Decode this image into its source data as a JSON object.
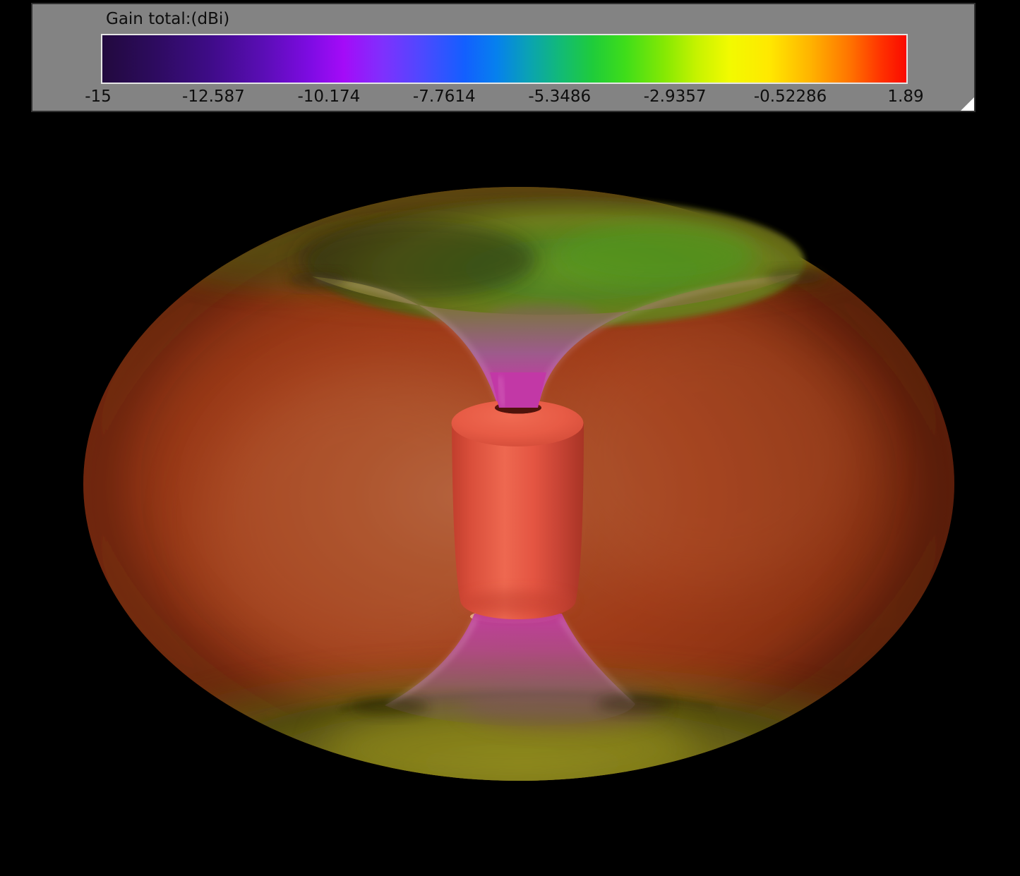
{
  "window": {
    "background_color": "#000000"
  },
  "legend": {
    "title": "Gain total:(dBi)",
    "panel_color": "#838383",
    "text_color": "#0e0e0e",
    "ticks": [
      "-15",
      "-12.587",
      "-10.174",
      "-7.7614",
      "-5.3486",
      "-2.9357",
      "-0.52286",
      "1.89"
    ],
    "gradient_stops": [
      [
        0,
        "#220a3e"
      ],
      [
        6,
        "#2c0b5c"
      ],
      [
        13,
        "#3d0c85"
      ],
      [
        20,
        "#5a0db5"
      ],
      [
        26,
        "#7f0ce4"
      ],
      [
        30,
        "#a40bf8"
      ],
      [
        35,
        "#7e31fd"
      ],
      [
        40,
        "#4b4aff"
      ],
      [
        45,
        "#135fff"
      ],
      [
        49,
        "#0680ee"
      ],
      [
        53,
        "#0aa2b4"
      ],
      [
        57,
        "#12ba76"
      ],
      [
        61,
        "#1fcc3a"
      ],
      [
        65,
        "#3edd1a"
      ],
      [
        70,
        "#86e903"
      ],
      [
        74,
        "#c7f300"
      ],
      [
        78,
        "#f2fa00"
      ],
      [
        83,
        "#ffe800"
      ],
      [
        88,
        "#ffb400"
      ],
      [
        93,
        "#ff7300"
      ],
      [
        97,
        "#ff3000"
      ],
      [
        100,
        "#fa0a00"
      ]
    ]
  },
  "chart_data": {
    "type": "heatmap",
    "title": "Gain total:(dBi)",
    "units": "dBi",
    "value_range": [
      -15,
      1.89
    ],
    "colorbar_ticks": [
      -15,
      -12.587,
      -10.174,
      -7.7614,
      -5.3486,
      -2.9357,
      -0.52286,
      1.89
    ],
    "colormap": [
      "#220a3e",
      "#3d0c85",
      "#7f0ce4",
      "#a40bf8",
      "#4b4aff",
      "#135fff",
      "#0aa2b4",
      "#1fcc3a",
      "#86e903",
      "#f2fa00",
      "#ffb400",
      "#ff7300",
      "#fa0a00"
    ],
    "annotations": [
      "3D far-field gain pattern: toroidal (donut) lobe around a vertical cylinder antenna",
      "Maximum gain 1.89 dBi (red) broadside around the equator",
      "Deep nulls toward -15 dBi (magenta/violet funnels) along the vertical axis above and below the antenna"
    ]
  },
  "scene": {
    "torus_body_color": "#a03c19",
    "rim_olive_color": "#6e6414",
    "bowl_green_color": "#568420",
    "null_magenta_color": "#c433ac",
    "antenna_color": "#ee6850",
    "max_gain_dbi": 1.89,
    "min_gain_dbi": -15
  }
}
